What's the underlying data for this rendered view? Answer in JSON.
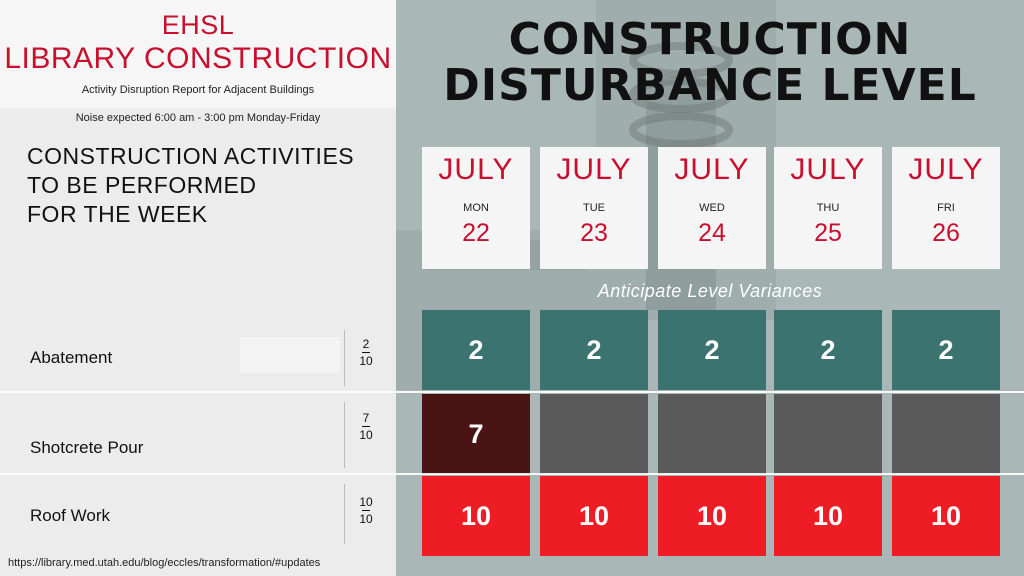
{
  "header": {
    "title_line1": "EHSL",
    "title_line2": "LIBRARY CONSTRUCTION",
    "subtitle": "Activity Disruption Report for Adjacent Buildings",
    "noise_note": "Noise expected 6:00 am - 3:00 pm Monday-Friday"
  },
  "activities_heading": [
    "CONSTRUCTION ACTIVITIES",
    "TO BE PERFORMED",
    "FOR THE WEEK"
  ],
  "main_title": [
    "CONSTRUCTION",
    "DISTURBANCE LEVEL"
  ],
  "days": [
    {
      "month": "JULY",
      "dow": "MON",
      "day": "22"
    },
    {
      "month": "JULY",
      "dow": "TUE",
      "day": "23"
    },
    {
      "month": "JULY",
      "dow": "WED",
      "day": "24"
    },
    {
      "month": "JULY",
      "dow": "THU",
      "day": "25"
    },
    {
      "month": "JULY",
      "dow": "FRI",
      "day": "26"
    }
  ],
  "variance_label": "Anticipate Level Variances",
  "activities": [
    {
      "name": "Abatement",
      "num": "2",
      "den": "10",
      "levels": [
        "2",
        "2",
        "2",
        "2",
        "2"
      ]
    },
    {
      "name": "Shotcrete Pour",
      "num": "7",
      "den": "10",
      "levels": [
        "7",
        "",
        "",
        "",
        ""
      ]
    },
    {
      "name": "Roof Work",
      "num": "10",
      "den": "10",
      "levels": [
        "10",
        "10",
        "10",
        "10",
        "10"
      ]
    }
  ],
  "colors": {
    "teal": "#3a7370",
    "dark_red": "#4a1414",
    "gray": "#5a5a5b",
    "bright_red": "#ee1c25",
    "accent_red": "#c8102e"
  },
  "footer_url": "https://library.med.utah.edu/blog/eccles/transformation/#updates"
}
